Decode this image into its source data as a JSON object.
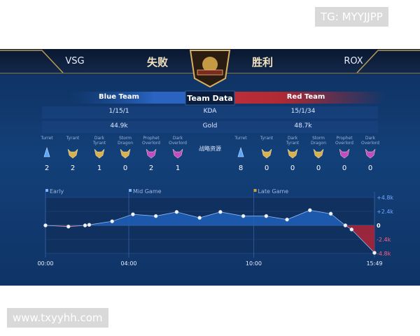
{
  "watermark_top": "TG: MYYJJPP",
  "header": {
    "left_team": "VSG",
    "left_result": "失败",
    "right_result": "胜利",
    "right_team": "ROX"
  },
  "team_data": {
    "blue_label": "Blue Team",
    "title": "Team Data",
    "red_label": "Red Team",
    "rows": [
      {
        "blue": "1/15/1",
        "label": "KDA",
        "red": "15/1/34"
      },
      {
        "blue": "44.9k",
        "label": "Gold",
        "red": "48.7k"
      }
    ]
  },
  "objectives": {
    "label": "战略资源",
    "names": [
      "Turret",
      "Tyrant",
      "Dark Tyrant",
      "Storm Dragon",
      "Prophet Overlord",
      "Dark Overlord"
    ],
    "blue": [
      2,
      2,
      1,
      0,
      2,
      1
    ],
    "red": [
      8,
      0,
      0,
      0,
      0,
      0
    ]
  },
  "gold_graph": {
    "phases": [
      "Early",
      "Mid Game",
      "Late Game"
    ],
    "minutes": [
      0,
      1.1,
      1.9,
      2.1,
      3.2,
      4.2,
      5.3,
      6.3,
      7.4,
      8.4,
      9.5,
      10.6,
      11.6,
      12.7,
      13.7,
      14.4,
      14.7,
      15.8
    ],
    "gold_diff": [
      0,
      -0.2,
      0,
      0.1,
      0.7,
      1.9,
      1.6,
      2.3,
      1.3,
      2.3,
      1.6,
      1.6,
      1.0,
      2.6,
      2.0,
      0,
      -0.7,
      -4.7
    ],
    "xlim": [
      0,
      15.8
    ],
    "ylim": [
      -4.8,
      4.8
    ],
    "xticks": [
      {
        "value": 0,
        "label": "00:00"
      },
      {
        "value": 4,
        "label": "04:00"
      },
      {
        "value": 10,
        "label": "10:00"
      },
      {
        "value": 15.8,
        "label": "15:49"
      }
    ],
    "yticks": [
      {
        "value": 4.8,
        "label": "+4.8k"
      },
      {
        "value": 2.4,
        "label": "+2.4k"
      },
      0,
      {
        "value": -2.4,
        "label": "-2.4k"
      },
      {
        "value": -4.8,
        "label": "-4.8k"
      }
    ]
  },
  "watermark_bottom": "www.txyyhh.com"
}
